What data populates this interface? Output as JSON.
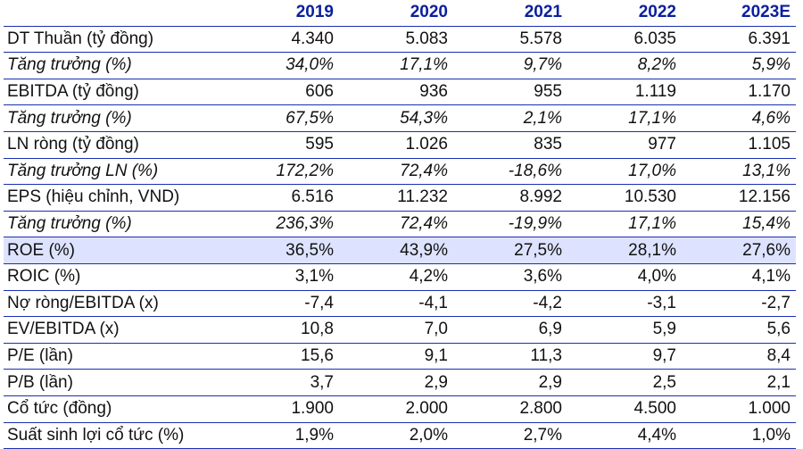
{
  "header": {
    "label": "",
    "years": [
      "2019",
      "2020",
      "2021",
      "2022",
      "2023E"
    ]
  },
  "rows": [
    {
      "label": "DT Thuần (tỷ đồng)",
      "values": [
        "4.340",
        "5.083",
        "5.578",
        "6.035",
        "6.391"
      ],
      "style": "normal"
    },
    {
      "label": "Tăng trưởng (%)",
      "values": [
        "34,0%",
        "17,1%",
        "9,7%",
        "8,2%",
        "5,9%"
      ],
      "style": "italic"
    },
    {
      "label": "EBITDA (tỷ đồng)",
      "values": [
        "606",
        "936",
        "955",
        "1.119",
        "1.170"
      ],
      "style": "normal"
    },
    {
      "label": "Tăng trưởng (%)",
      "values": [
        "67,5%",
        "54,3%",
        "2,1%",
        "17,1%",
        "4,6%"
      ],
      "style": "italic"
    },
    {
      "label": "LN ròng (tỷ đồng)",
      "values": [
        "595",
        "1.026",
        "835",
        "977",
        "1.105"
      ],
      "style": "normal"
    },
    {
      "label": "Tăng trưởng LN (%)",
      "values": [
        "172,2%",
        "72,4%",
        "-18,6%",
        "17,0%",
        "13,1%"
      ],
      "style": "italic"
    },
    {
      "label": "EPS (hiệu chỉnh, VND)",
      "values": [
        "6.516",
        "11.232",
        "8.992",
        "10.530",
        "12.156"
      ],
      "style": "normal"
    },
    {
      "label": "Tăng trưởng (%)",
      "values": [
        "236,3%",
        "72,4%",
        "-19,9%",
        "17,1%",
        "15,4%"
      ],
      "style": "italic"
    },
    {
      "label": "ROE (%)",
      "values": [
        "36,5%",
        "43,9%",
        "27,5%",
        "28,1%",
        "27,6%"
      ],
      "style": "highlight"
    },
    {
      "label": "ROIC (%)",
      "values": [
        "3,1%",
        "4,2%",
        "3,6%",
        "4,0%",
        "4,1%"
      ],
      "style": "normal"
    },
    {
      "label": "Nợ ròng/EBITDA (x)",
      "values": [
        "-7,4",
        "-4,1",
        "-4,2",
        "-3,1",
        "-2,7"
      ],
      "style": "normal"
    },
    {
      "label": "EV/EBITDA (x)",
      "values": [
        "10,8",
        "7,0",
        "6,9",
        "5,9",
        "5,6"
      ],
      "style": "normal"
    },
    {
      "label": "P/E (lần)",
      "values": [
        "15,6",
        "9,1",
        "11,3",
        "9,7",
        "8,4"
      ],
      "style": "normal"
    },
    {
      "label": "P/B (lần)",
      "values": [
        "3,7",
        "2,9",
        "2,9",
        "2,5",
        "2,1"
      ],
      "style": "normal"
    },
    {
      "label": "Cổ tức (đồng)",
      "values": [
        "1.900",
        "2.000",
        "2.800",
        "4.500",
        "1.000"
      ],
      "style": "normal"
    },
    {
      "label": "Suất sinh lợi cổ tức (%)",
      "values": [
        "1,9%",
        "2,0%",
        "2,7%",
        "4,4%",
        "1,0%"
      ],
      "style": "normal"
    }
  ],
  "colors": {
    "header_text": "#0a1f9e",
    "rule_line": "#1a2fb0",
    "highlight_fill": "#dde3ff",
    "body_text": "#111111"
  }
}
